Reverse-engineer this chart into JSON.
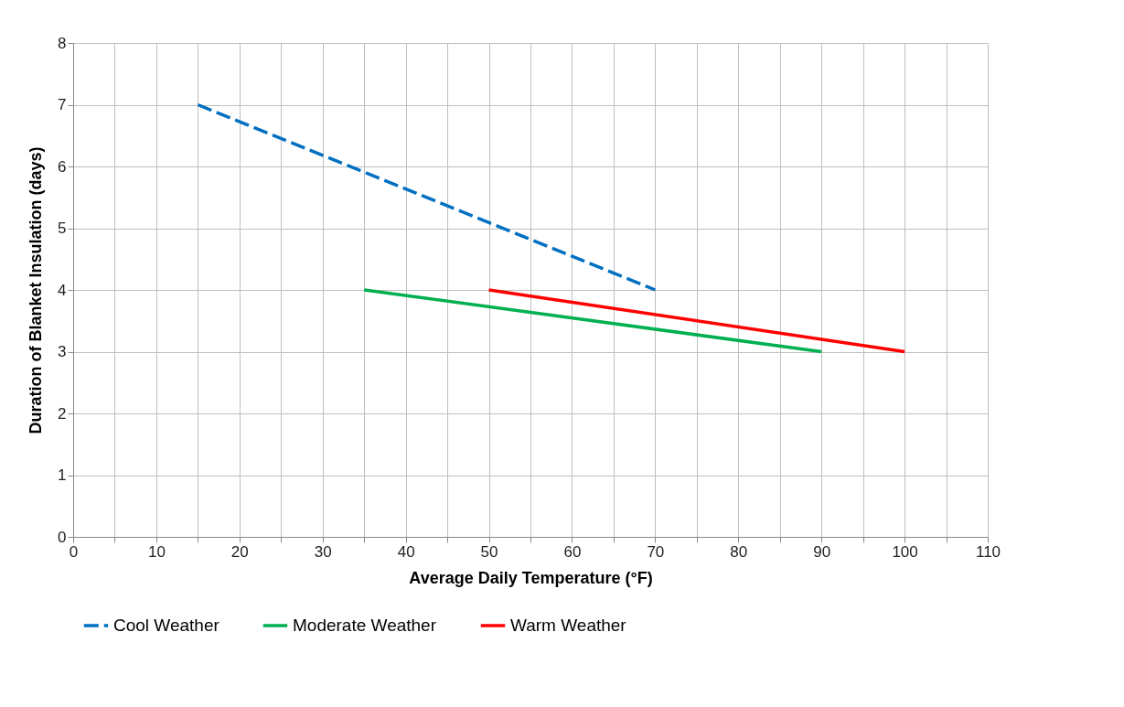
{
  "chart_data": {
    "type": "line",
    "xlabel": "Average Daily Temperature (°F)",
    "ylabel": "Duration of Blanket Insulation (days)",
    "series": [
      {
        "name": "Cool Weather",
        "color": "#0070c0",
        "line_style": "dashed",
        "x": [
          15,
          70
        ],
        "values": [
          7,
          4
        ]
      },
      {
        "name": "Moderate Weather",
        "color": "#00b050",
        "line_style": "solid",
        "x": [
          35,
          90
        ],
        "values": [
          4,
          3
        ]
      },
      {
        "name": "Warm Weather",
        "color": "#ff0000",
        "line_style": "solid",
        "x": [
          50,
          100
        ],
        "values": [
          4,
          3
        ]
      }
    ],
    "xlim": [
      0,
      110
    ],
    "xticks": [
      0,
      {
        "value": 5,
        "label": null
      },
      10,
      {
        "value": 15,
        "label": null
      },
      20,
      {
        "value": 25,
        "label": null
      },
      30,
      {
        "value": 35,
        "label": null
      },
      40,
      {
        "value": 45,
        "label": null
      },
      50,
      {
        "value": 55,
        "label": null
      },
      60,
      {
        "value": 65,
        "label": null
      },
      70,
      {
        "value": 75,
        "label": null
      },
      80,
      {
        "value": 85,
        "label": null
      },
      90,
      {
        "value": 95,
        "label": null
      },
      100,
      {
        "value": 105,
        "label": null
      },
      110
    ],
    "ylim": [
      0,
      8
    ],
    "yticks": [
      0,
      1,
      2,
      3,
      4,
      5,
      6,
      7,
      8
    ],
    "grid": true,
    "legend": "bottom",
    "marker": "none"
  }
}
